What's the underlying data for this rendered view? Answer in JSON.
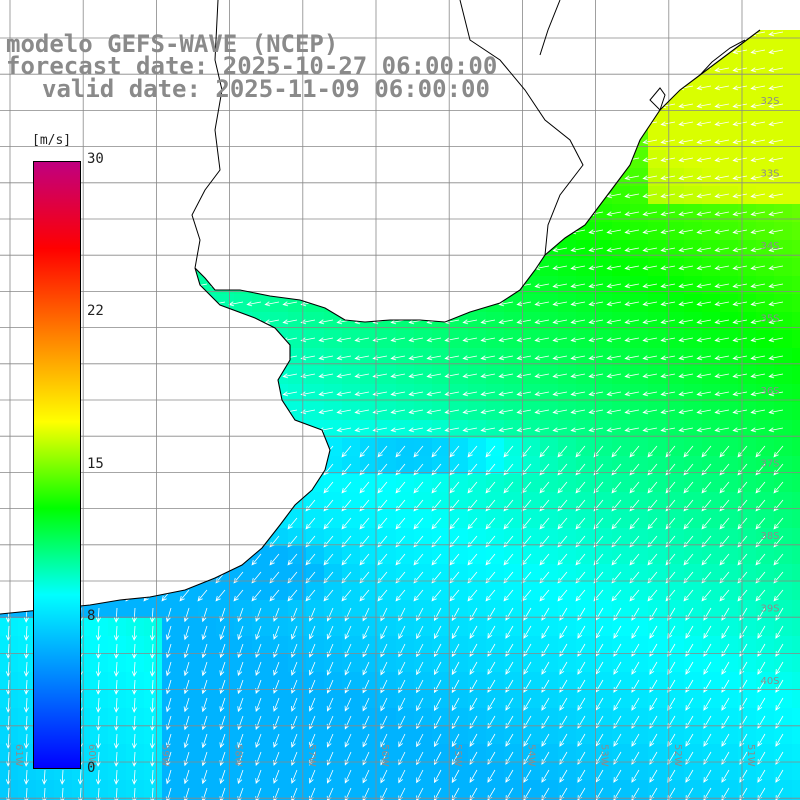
{
  "title": {
    "line1": "modelo GEFS-WAVE (NCEP)",
    "line2": "forecast date: 2025-10-27 06:00:00",
    "line3": "valid date: 2025-11-09 06:00:00"
  },
  "colorbar": {
    "unit": "[m/s]",
    "ticks": [
      "30",
      "22",
      "15",
      "8",
      "0"
    ],
    "min": 0,
    "max": 30,
    "stops": [
      "#0000ff",
      "#0080ff",
      "#00ffff",
      "#00ff00",
      "#ffff00",
      "#ff8000",
      "#ff0000",
      "#c00080"
    ]
  },
  "map": {
    "lat_labels": [
      "32S",
      "33S",
      "34S",
      "35S",
      "36S",
      "37S",
      "38S",
      "39S",
      "40S"
    ],
    "lon_labels": [
      "61W",
      "60W",
      "59W",
      "58W",
      "57W",
      "56W",
      "55W",
      "54W",
      "53W",
      "52W",
      "51W"
    ],
    "field": "wind speed",
    "land_color": "#ffffff",
    "coast_color": "#000000",
    "grid_color": "#888888",
    "arrow_color": "#ffffff"
  }
}
